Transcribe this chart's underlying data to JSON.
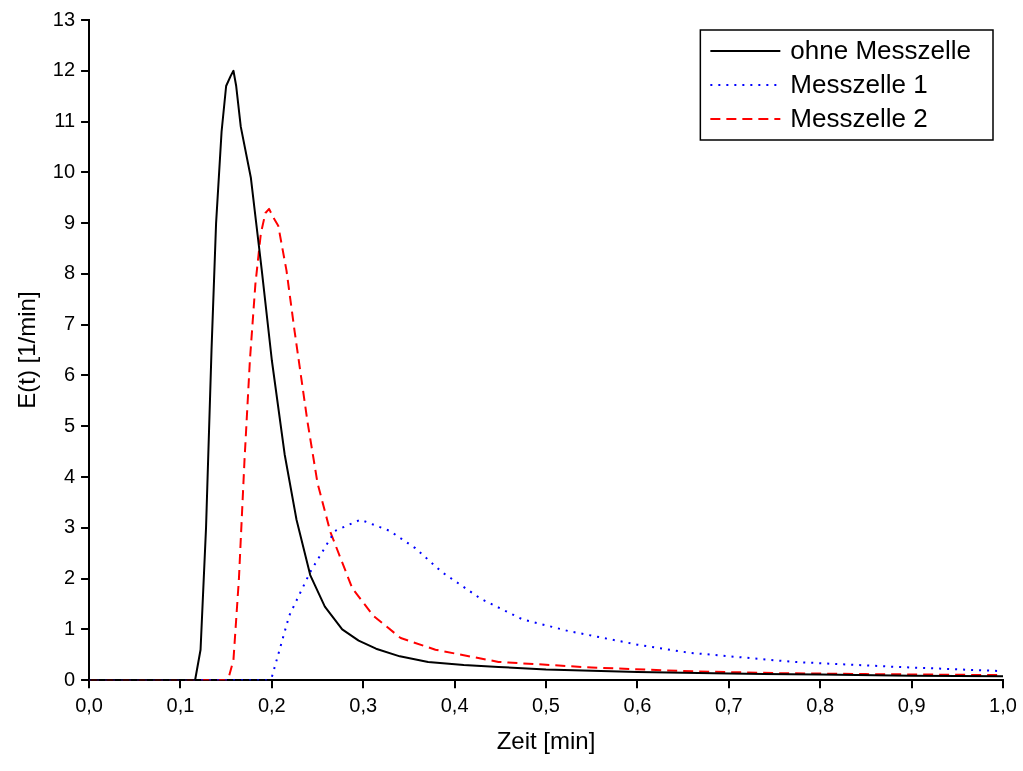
{
  "chart_data": {
    "type": "line",
    "xlabel": "Zeit [min]",
    "ylabel": "E(t) [1/min]",
    "xlim": [
      0,
      1
    ],
    "ylim": [
      0,
      13
    ],
    "xticks": [
      {
        "value": 0,
        "label": "0,0"
      },
      {
        "value": 0.1,
        "label": "0,1"
      },
      {
        "value": 0.2,
        "label": "0,2"
      },
      {
        "value": 0.3,
        "label": "0,3"
      },
      {
        "value": 0.4,
        "label": "0,4"
      },
      {
        "value": 0.5,
        "label": "0,5"
      },
      {
        "value": 0.6,
        "label": "0,6"
      },
      {
        "value": 0.7,
        "label": "0,7"
      },
      {
        "value": 0.8,
        "label": "0,8"
      },
      {
        "value": 0.9,
        "label": "0,9"
      },
      {
        "value": 1,
        "label": "1,0"
      }
    ],
    "yticks": [
      0,
      1,
      2,
      3,
      4,
      5,
      6,
      7,
      8,
      9,
      10,
      11,
      12,
      13
    ],
    "grid": false,
    "legend": "top right",
    "marker": "none",
    "series": [
      {
        "name": "ohne Messzelle",
        "color": "#000000",
        "line_style": "solid",
        "x": [
          0,
          0.116,
          0.122,
          0.128,
          0.134,
          0.139,
          0.145,
          0.15,
          0.155,
          0.158,
          0.161,
          0.166,
          0.177,
          0.189,
          0.2,
          0.214,
          0.227,
          0.242,
          0.258,
          0.277,
          0.295,
          0.314,
          0.34,
          0.371,
          0.41,
          0.448,
          0.5,
          0.6,
          0.7,
          0.8,
          0.9,
          1.0
        ],
        "values": [
          0,
          0,
          0.6,
          3.0,
          6.5,
          9.0,
          10.8,
          11.7,
          11.9,
          12.0,
          11.7,
          10.9,
          9.9,
          8.07,
          6.3,
          4.45,
          3.16,
          2.07,
          1.45,
          1.0,
          0.78,
          0.62,
          0.47,
          0.36,
          0.3,
          0.26,
          0.21,
          0.16,
          0.13,
          0.11,
          0.09,
          0.08
        ]
      },
      {
        "name": "Messzelle 1",
        "color": "#0000ff",
        "line_style": "dotted",
        "x": [
          0,
          0.194,
          0.2,
          0.219,
          0.242,
          0.269,
          0.297,
          0.329,
          0.357,
          0.386,
          0.429,
          0.474,
          0.524,
          0.6,
          0.657,
          0.771,
          0.886,
          0.997
        ],
        "values": [
          0,
          0,
          0.06,
          1.27,
          2.13,
          2.94,
          3.16,
          2.94,
          2.6,
          2.13,
          1.6,
          1.2,
          0.97,
          0.7,
          0.54,
          0.36,
          0.26,
          0.18
        ]
      },
      {
        "name": "Messzelle 2",
        "color": "#ff0000",
        "line_style": "dashed",
        "x": [
          0,
          0.152,
          0.158,
          0.164,
          0.17,
          0.176,
          0.182,
          0.188,
          0.193,
          0.197,
          0.202,
          0.207,
          0.216,
          0.225,
          0.239,
          0.25,
          0.264,
          0.288,
          0.311,
          0.341,
          0.379,
          0.448,
          0.55,
          0.65,
          0.75,
          0.85,
          1.0
        ],
        "values": [
          0,
          0,
          0.4,
          2.0,
          4.3,
          6.3,
          7.8,
          8.8,
          9.2,
          9.28,
          9.1,
          8.95,
          8.07,
          6.86,
          5.09,
          3.88,
          2.92,
          1.81,
          1.27,
          0.83,
          0.6,
          0.36,
          0.25,
          0.18,
          0.14,
          0.12,
          0.1
        ]
      }
    ]
  }
}
